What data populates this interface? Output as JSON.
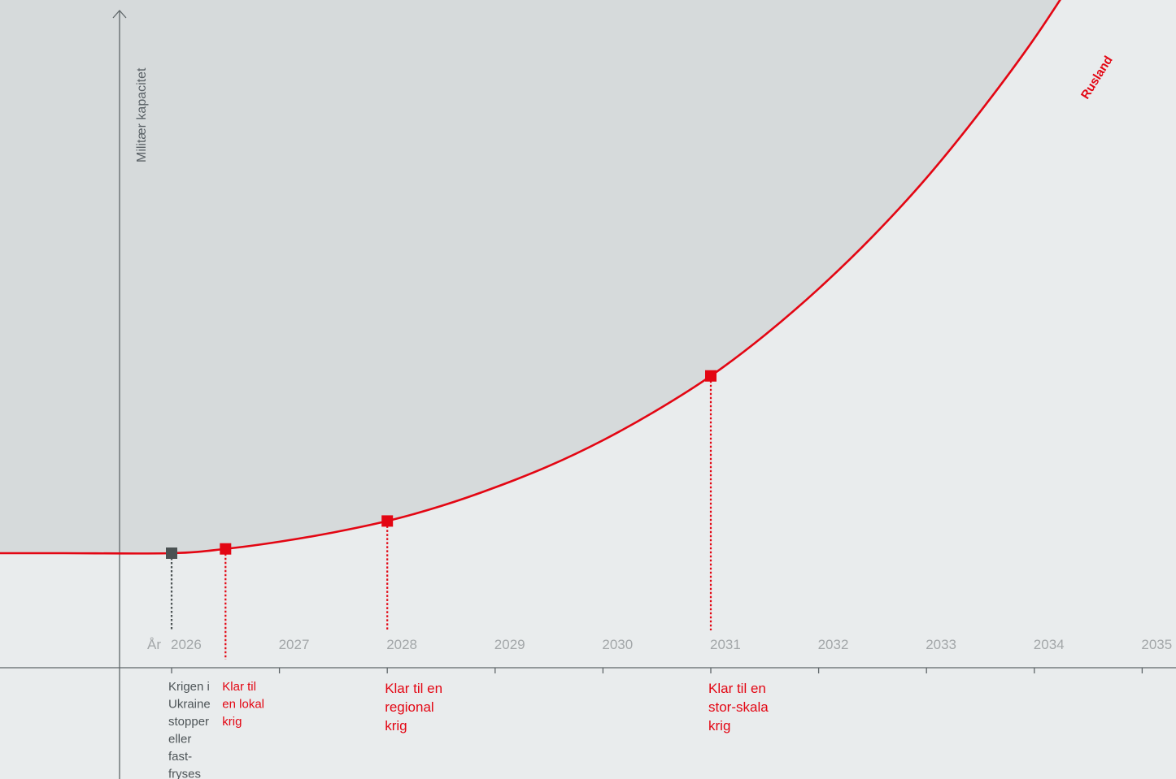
{
  "chart_data": {
    "type": "line",
    "title": "",
    "ylabel": "Militær kapacitet",
    "xlabel": "År",
    "xlim": [
      2025.5,
      2035
    ],
    "ylim": [
      0,
      100
    ],
    "x_ticks": [
      "2026",
      "2027",
      "2028",
      "2029",
      "2030",
      "2031",
      "2032",
      "2033",
      "2034",
      "2035"
    ],
    "grid": false,
    "colors": {
      "series": "#e30613",
      "marker_neutral": "#4b5253",
      "axis": "#5f6669",
      "shaded_area": "#d6dadb",
      "background": "#e9eced"
    },
    "series": [
      {
        "name": "Rusland",
        "color": "#e30613",
        "points": [
          {
            "x": 2025.0,
            "y": 17
          },
          {
            "x": 2026.0,
            "y": 17
          },
          {
            "x": 2026.5,
            "y": 17.6
          },
          {
            "x": 2027.0,
            "y": 18.6
          },
          {
            "x": 2027.5,
            "y": 19.9
          },
          {
            "x": 2028.0,
            "y": 21.5
          },
          {
            "x": 2028.5,
            "y": 23.6
          },
          {
            "x": 2029.0,
            "y": 26.2
          },
          {
            "x": 2029.5,
            "y": 29.2
          },
          {
            "x": 2030.0,
            "y": 32.8
          },
          {
            "x": 2030.5,
            "y": 37.0
          },
          {
            "x": 2031.0,
            "y": 41.8
          },
          {
            "x": 2031.5,
            "y": 47.5
          },
          {
            "x": 2032.0,
            "y": 54.0
          },
          {
            "x": 2032.5,
            "y": 61.3
          },
          {
            "x": 2033.0,
            "y": 69.5
          },
          {
            "x": 2033.5,
            "y": 78.8
          },
          {
            "x": 2034.0,
            "y": 89.0
          },
          {
            "x": 2034.5,
            "y": 100.5
          },
          {
            "x": 2034.75,
            "y": 106.5
          }
        ]
      }
    ],
    "annotations": [
      {
        "x": 2026.0,
        "y": 17.0,
        "type": "neutral",
        "lines": [
          "Krigen i",
          "Ukraine",
          "stopper",
          "eller",
          "fast-",
          "fryses"
        ]
      },
      {
        "x": 2026.5,
        "y": 17.6,
        "type": "red-small",
        "lines": [
          "Klar til",
          "en lokal",
          "krig"
        ]
      },
      {
        "x": 2028.0,
        "y": 21.5,
        "type": "red-large",
        "lines": [
          "Klar til en",
          "regional",
          "krig"
        ]
      },
      {
        "x": 2031.0,
        "y": 41.8,
        "type": "red-large",
        "lines": [
          "Klar til en",
          "stor-skala",
          "krig"
        ]
      }
    ]
  }
}
